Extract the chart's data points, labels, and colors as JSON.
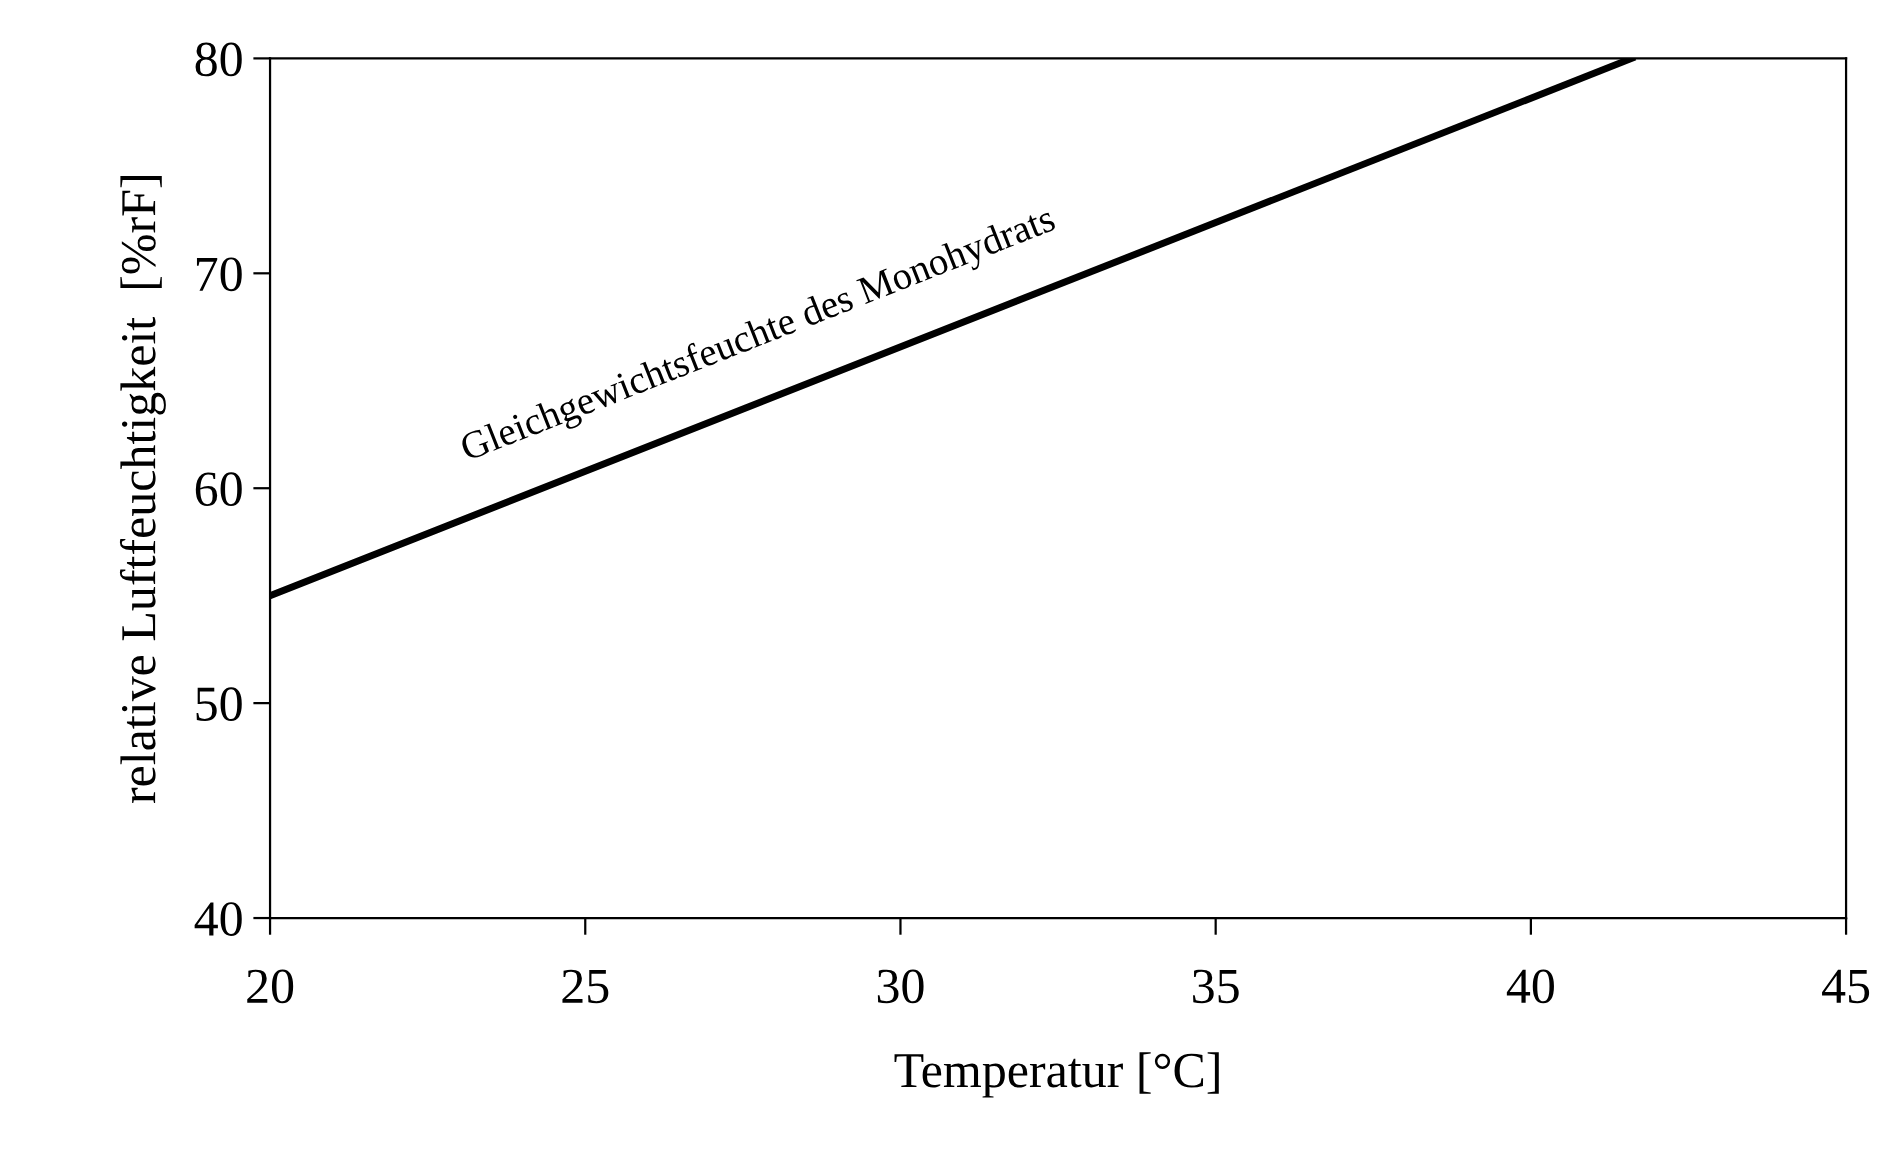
{
  "chart_data": {
    "type": "line",
    "xlabel": "Temperatur [°C]",
    "ylabel": "relative Luftfeuchtigkeit  [%rF]",
    "series": [
      {
        "name": "Gleichgewichtsfeuchte des Monohydrats",
        "color": "#000000",
        "x": [
          20,
          41.6
        ],
        "values": [
          55,
          80
        ]
      }
    ],
    "xlim": [
      20,
      45
    ],
    "ylim": [
      40,
      80
    ],
    "xticks": [
      20,
      25,
      30,
      35,
      40,
      45
    ],
    "yticks": [
      40,
      50,
      60,
      70,
      80
    ],
    "grid": false,
    "legend": false,
    "marker": "none",
    "line_style": "solid"
  }
}
